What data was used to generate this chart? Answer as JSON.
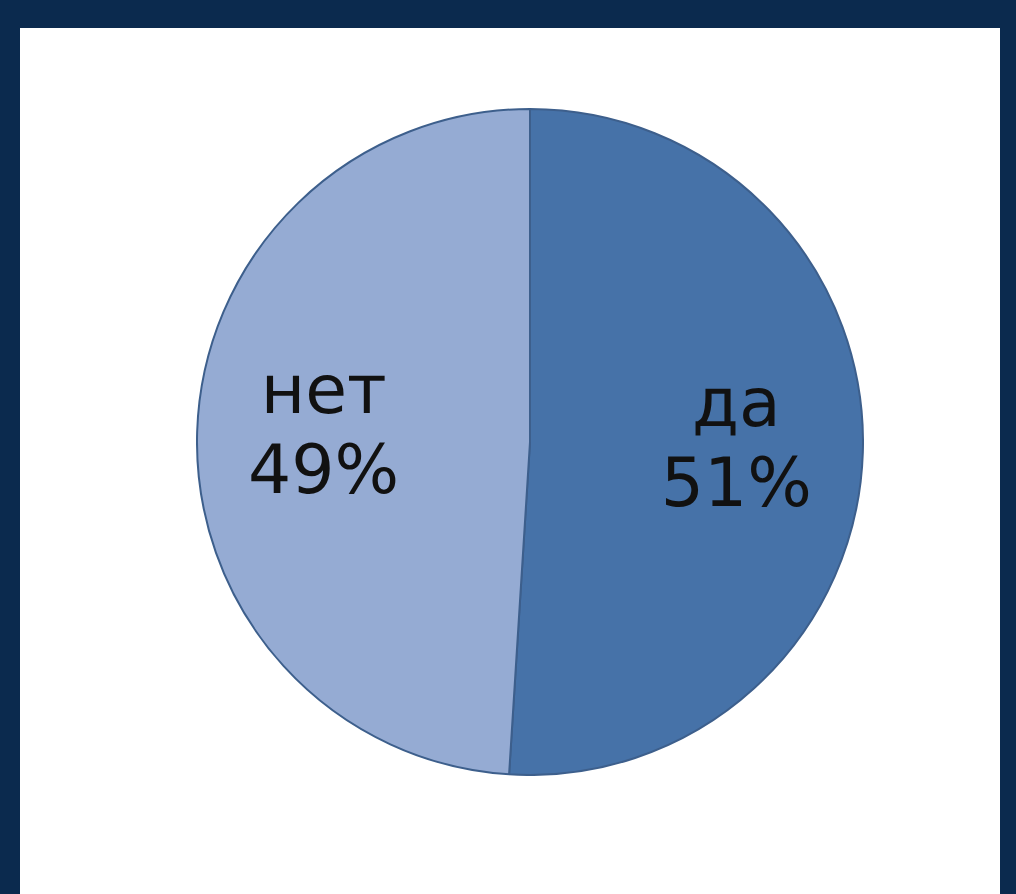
{
  "chart_data": {
    "type": "pie",
    "categories": [
      "да",
      "нет"
    ],
    "values": [
      51,
      49
    ],
    "colors": [
      "#4672a8",
      "#95abd3"
    ],
    "value_labels": [
      "51%",
      "49%"
    ],
    "legend": false
  }
}
